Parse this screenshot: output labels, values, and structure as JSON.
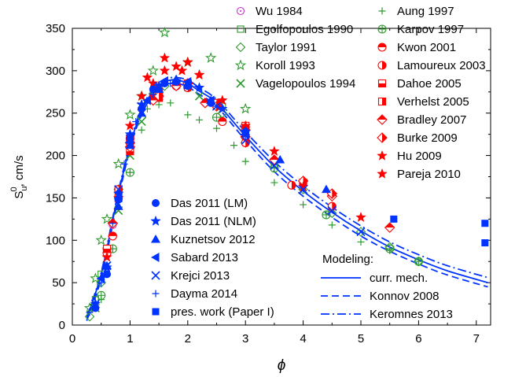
{
  "chart_data": {
    "type": "scatter",
    "title": "",
    "xlabel": "ϕ",
    "ylabel": {
      "main": "S",
      "sup": "0",
      "sub": "u",
      "unit": ", cm/s"
    },
    "xlim": [
      0,
      7.25
    ],
    "ylim": [
      0,
      350
    ],
    "xticks": [
      0,
      1,
      2,
      3,
      4,
      5,
      6,
      7
    ],
    "yticks": [
      0,
      50,
      100,
      150,
      200,
      250,
      300,
      350
    ],
    "grid": false,
    "modeling_heading": "Modeling:",
    "model_curves": [
      {
        "name": "curr. mech.",
        "style": "solid",
        "points": [
          [
            0.25,
            8
          ],
          [
            0.5,
            60
          ],
          [
            0.75,
            140
          ],
          [
            1.0,
            212
          ],
          [
            1.2,
            252
          ],
          [
            1.4,
            276
          ],
          [
            1.6,
            287
          ],
          [
            1.8,
            289
          ],
          [
            2.0,
            285
          ],
          [
            2.2,
            276
          ],
          [
            2.5,
            262
          ],
          [
            3.0,
            223
          ],
          [
            3.5,
            187
          ],
          [
            4.0,
            158
          ],
          [
            4.5,
            133
          ],
          [
            5.0,
            111
          ],
          [
            5.5,
            92
          ],
          [
            6.0,
            77
          ],
          [
            6.5,
            64
          ],
          [
            7.2,
            50
          ]
        ]
      },
      {
        "name": "Konnov 2008",
        "style": "dashed",
        "points": [
          [
            0.25,
            5
          ],
          [
            0.5,
            55
          ],
          [
            0.75,
            135
          ],
          [
            1.0,
            208
          ],
          [
            1.2,
            248
          ],
          [
            1.4,
            272
          ],
          [
            1.6,
            283
          ],
          [
            1.8,
            285
          ],
          [
            2.0,
            281
          ],
          [
            2.2,
            272
          ],
          [
            2.5,
            258
          ],
          [
            3.0,
            218
          ],
          [
            3.5,
            181
          ],
          [
            4.0,
            152
          ],
          [
            4.5,
            127
          ],
          [
            5.0,
            105
          ],
          [
            5.5,
            87
          ],
          [
            6.0,
            72
          ],
          [
            6.5,
            59
          ],
          [
            7.2,
            45
          ]
        ]
      },
      {
        "name": "Keromnes 2013",
        "style": "dashdot",
        "points": [
          [
            0.25,
            10
          ],
          [
            0.5,
            62
          ],
          [
            0.75,
            143
          ],
          [
            1.0,
            215
          ],
          [
            1.2,
            255
          ],
          [
            1.4,
            279
          ],
          [
            1.6,
            290
          ],
          [
            1.8,
            292
          ],
          [
            2.0,
            289
          ],
          [
            2.2,
            280
          ],
          [
            2.5,
            266
          ],
          [
            3.0,
            228
          ],
          [
            3.5,
            193
          ],
          [
            4.0,
            164
          ],
          [
            4.5,
            139
          ],
          [
            5.0,
            117
          ],
          [
            5.5,
            98
          ],
          [
            6.0,
            83
          ],
          [
            6.5,
            70
          ],
          [
            7.2,
            56
          ]
        ]
      }
    ],
    "series": [
      {
        "name": "Wu 1984",
        "marker": "circle-dot",
        "color": "#cc33cc",
        "points": [
          [
            0.7,
            118
          ],
          [
            0.8,
            150
          ],
          [
            1.0,
            210
          ],
          [
            1.2,
            255
          ],
          [
            1.4,
            272
          ],
          [
            1.8,
            282
          ],
          [
            2.3,
            262
          ]
        ]
      },
      {
        "name": "Egolfopoulos 1990",
        "marker": "square-open",
        "color": "#2e9a2e",
        "points": [
          [
            0.4,
            30
          ],
          [
            0.5,
            60
          ],
          [
            0.6,
            88
          ],
          [
            0.8,
            155
          ],
          [
            1.0,
            215
          ],
          [
            1.4,
            270
          ],
          [
            2.0,
            280
          ],
          [
            2.6,
            258
          ],
          [
            3.0,
            225
          ],
          [
            3.5,
            190
          ]
        ]
      },
      {
        "name": "Taylor 1991",
        "marker": "diamond-open",
        "color": "#2e9a2e",
        "points": [
          [
            0.3,
            10
          ],
          [
            0.5,
            50
          ],
          [
            0.8,
            160
          ],
          [
            1.2,
            245
          ],
          [
            1.6,
            282
          ],
          [
            2.0,
            285
          ],
          [
            2.6,
            250
          ],
          [
            3.0,
            215
          ],
          [
            4.0,
            160
          ],
          [
            4.5,
            132
          ],
          [
            5.0,
            110
          ],
          [
            5.5,
            92
          ],
          [
            6.0,
            75
          ]
        ]
      },
      {
        "name": "Koroll 1993",
        "marker": "star-open",
        "color": "#2e9a2e",
        "points": [
          [
            0.3,
            20
          ],
          [
            0.4,
            55
          ],
          [
            0.5,
            100
          ],
          [
            0.6,
            125
          ],
          [
            0.8,
            190
          ],
          [
            1.0,
            248
          ],
          [
            1.2,
            270
          ],
          [
            1.4,
            300
          ],
          [
            1.6,
            345
          ],
          [
            2.0,
            310
          ],
          [
            2.4,
            315
          ],
          [
            3.0,
            255
          ]
        ]
      },
      {
        "name": "Vagelopoulos 1994",
        "marker": "x",
        "color": "#2e9a2e",
        "points": [
          [
            0.4,
            20
          ],
          [
            0.6,
            70
          ],
          [
            0.8,
            135
          ],
          [
            1.0,
            200
          ],
          [
            1.2,
            240
          ],
          [
            1.5,
            270
          ],
          [
            1.8,
            285
          ],
          [
            2.2,
            270
          ]
        ]
      },
      {
        "name": "Aung 1997",
        "marker": "plus",
        "color": "#2e9a2e",
        "points": [
          [
            0.5,
            30
          ],
          [
            0.7,
            90
          ],
          [
            1.0,
            180
          ],
          [
            1.2,
            230
          ],
          [
            1.3,
            255
          ],
          [
            1.5,
            260
          ],
          [
            1.7,
            262
          ],
          [
            2.0,
            248
          ],
          [
            2.2,
            242
          ],
          [
            2.5,
            232
          ],
          [
            2.8,
            212
          ],
          [
            3.0,
            193
          ],
          [
            3.5,
            168
          ],
          [
            4.0,
            142
          ],
          [
            4.5,
            118
          ],
          [
            5.0,
            98
          ],
          [
            5.5,
            88
          ]
        ]
      },
      {
        "name": "Karpov 1997",
        "marker": "circle-plus",
        "color": "#2e9a2e",
        "points": [
          [
            0.5,
            35
          ],
          [
            0.7,
            90
          ],
          [
            1.0,
            180
          ],
          [
            1.5,
            270
          ],
          [
            2.5,
            245
          ],
          [
            3.5,
            185
          ],
          [
            4.4,
            130
          ],
          [
            5.5,
            90
          ],
          [
            6.0,
            75
          ]
        ]
      },
      {
        "name": "Kwon 2001",
        "marker": "circle-top",
        "color": "#ff0000",
        "points": [
          [
            0.6,
            85
          ],
          [
            0.7,
            105
          ],
          [
            0.8,
            150
          ],
          [
            1.0,
            220
          ],
          [
            1.4,
            268
          ],
          [
            1.8,
            282
          ],
          [
            2.6,
            240
          ],
          [
            3.0,
            222
          ]
        ]
      },
      {
        "name": "Lamoureux 2003",
        "marker": "circle-right",
        "color": "#ff0000",
        "points": [
          [
            0.6,
            90
          ],
          [
            0.8,
            160
          ],
          [
            1.0,
            215
          ],
          [
            1.5,
            275
          ],
          [
            2.0,
            280
          ],
          [
            3.0,
            215
          ],
          [
            3.8,
            165
          ],
          [
            4.5,
            140
          ]
        ]
      },
      {
        "name": "Dahoe 2005",
        "marker": "square-bottom",
        "color": "#ff0000",
        "points": [
          [
            0.6,
            90
          ],
          [
            0.8,
            150
          ],
          [
            1.0,
            205
          ],
          [
            1.5,
            268
          ],
          [
            2.0,
            283
          ],
          [
            2.5,
            260
          ],
          [
            3.0,
            235
          ],
          [
            4.0,
            168
          ]
        ]
      },
      {
        "name": "Verhelst 2005",
        "marker": "square-right",
        "color": "#ff0000",
        "points": [
          [
            0.8,
            160
          ],
          [
            1.0,
            220
          ],
          [
            1.5,
            275
          ],
          [
            2.0,
            285
          ],
          [
            2.5,
            262
          ]
        ]
      },
      {
        "name": "Bradley 2007",
        "marker": "diamond-top",
        "color": "#ff0000",
        "points": [
          [
            0.7,
            120
          ],
          [
            1.0,
            210
          ],
          [
            1.4,
            265
          ],
          [
            1.8,
            282
          ],
          [
            2.3,
            262
          ],
          [
            3.0,
            222
          ],
          [
            3.5,
            195
          ],
          [
            4.5,
            152
          ],
          [
            5.5,
            115
          ]
        ]
      },
      {
        "name": "Burke 2009",
        "marker": "diamond-right",
        "color": "#ff0000",
        "points": [
          [
            1.0,
            215
          ],
          [
            1.5,
            270
          ],
          [
            2.0,
            285
          ],
          [
            2.5,
            258
          ],
          [
            3.0,
            230
          ],
          [
            4.0,
            170
          ],
          [
            4.5,
            155
          ]
        ]
      },
      {
        "name": "Hu 2009",
        "marker": "star-filled",
        "color": "#ff0000",
        "points": [
          [
            0.6,
            80
          ],
          [
            0.8,
            150
          ],
          [
            1.0,
            235
          ],
          [
            1.2,
            270
          ],
          [
            1.4,
            285
          ],
          [
            1.6,
            300
          ],
          [
            1.8,
            305
          ],
          [
            2.0,
            310
          ],
          [
            2.2,
            295
          ],
          [
            2.6,
            265
          ],
          [
            3.0,
            232
          ],
          [
            3.5,
            205
          ],
          [
            4.0,
            163
          ],
          [
            5.0,
            127
          ]
        ]
      },
      {
        "name": "Pareja 2010",
        "marker": "star-filled",
        "color": "#ff0000",
        "points": [
          [
            1.3,
            292
          ],
          [
            1.6,
            315
          ],
          [
            1.9,
            300
          ],
          [
            2.2,
            295
          ],
          [
            3.0,
            235
          ]
        ]
      },
      {
        "name": "Das 2011 (LM)",
        "marker": "circle-filled",
        "color": "#0033ff",
        "points": [
          [
            0.4,
            20
          ],
          [
            0.6,
            60
          ],
          [
            0.8,
            148
          ],
          [
            1.0,
            220
          ],
          [
            1.2,
            255
          ],
          [
            1.4,
            278
          ],
          [
            1.6,
            285
          ],
          [
            1.8,
            287
          ],
          [
            2.0,
            282
          ],
          [
            2.4,
            262
          ],
          [
            3.0,
            228
          ]
        ]
      },
      {
        "name": "Das 2011 (NLM)",
        "marker": "star-blue",
        "color": "#0033ff",
        "points": [
          [
            0.4,
            25
          ],
          [
            0.6,
            68
          ],
          [
            0.8,
            155
          ],
          [
            1.0,
            225
          ],
          [
            1.2,
            260
          ],
          [
            1.5,
            282
          ],
          [
            1.8,
            288
          ],
          [
            2.2,
            280
          ],
          [
            2.6,
            255
          ],
          [
            3.0,
            228
          ]
        ]
      },
      {
        "name": "Kuznetsov 2012",
        "marker": "triangle-up",
        "color": "#0033ff",
        "points": [
          [
            0.6,
            70
          ],
          [
            0.8,
            140
          ],
          [
            1.0,
            212
          ],
          [
            1.2,
            250
          ],
          [
            1.5,
            278
          ],
          [
            1.8,
            290
          ],
          [
            2.0,
            285
          ],
          [
            2.4,
            265
          ],
          [
            3.0,
            228
          ],
          [
            3.6,
            195
          ],
          [
            4.4,
            160
          ]
        ]
      },
      {
        "name": "Sabard 2013",
        "marker": "triangle-left",
        "color": "#0033ff",
        "points": [
          [
            0.5,
            55
          ],
          [
            0.8,
            150
          ],
          [
            1.0,
            215
          ],
          [
            1.3,
            265
          ],
          [
            1.6,
            288
          ],
          [
            2.0,
            287
          ],
          [
            2.4,
            265
          ],
          [
            3.0,
            225
          ]
        ]
      },
      {
        "name": "Krejci 2013",
        "marker": "x",
        "color": "#0033ff",
        "points": [
          [
            0.4,
            25
          ],
          [
            0.6,
            70
          ],
          [
            0.8,
            160
          ],
          [
            1.0,
            220
          ],
          [
            1.2,
            258
          ],
          [
            1.5,
            282
          ],
          [
            2.0,
            283
          ],
          [
            2.5,
            258
          ],
          [
            3.0,
            218
          ],
          [
            3.5,
            188
          ],
          [
            4.0,
            160
          ],
          [
            4.5,
            135
          ],
          [
            5.0,
            110
          ]
        ]
      },
      {
        "name": "Dayma 2014",
        "marker": "plus",
        "color": "#0033ff",
        "points": [
          [
            0.3,
            15
          ],
          [
            0.5,
            50
          ],
          [
            0.7,
            120
          ],
          [
            0.9,
            190
          ],
          [
            1.1,
            240
          ],
          [
            1.4,
            272
          ],
          [
            1.7,
            285
          ],
          [
            2.0,
            283
          ],
          [
            2.5,
            258
          ],
          [
            3.0,
            222
          ]
        ]
      },
      {
        "name": "pres. work (Paper I)",
        "marker": "square-filled",
        "color": "#0033ff",
        "points": [
          [
            5.57,
            125
          ],
          [
            7.15,
            120
          ],
          [
            7.15,
            97
          ]
        ]
      }
    ]
  }
}
